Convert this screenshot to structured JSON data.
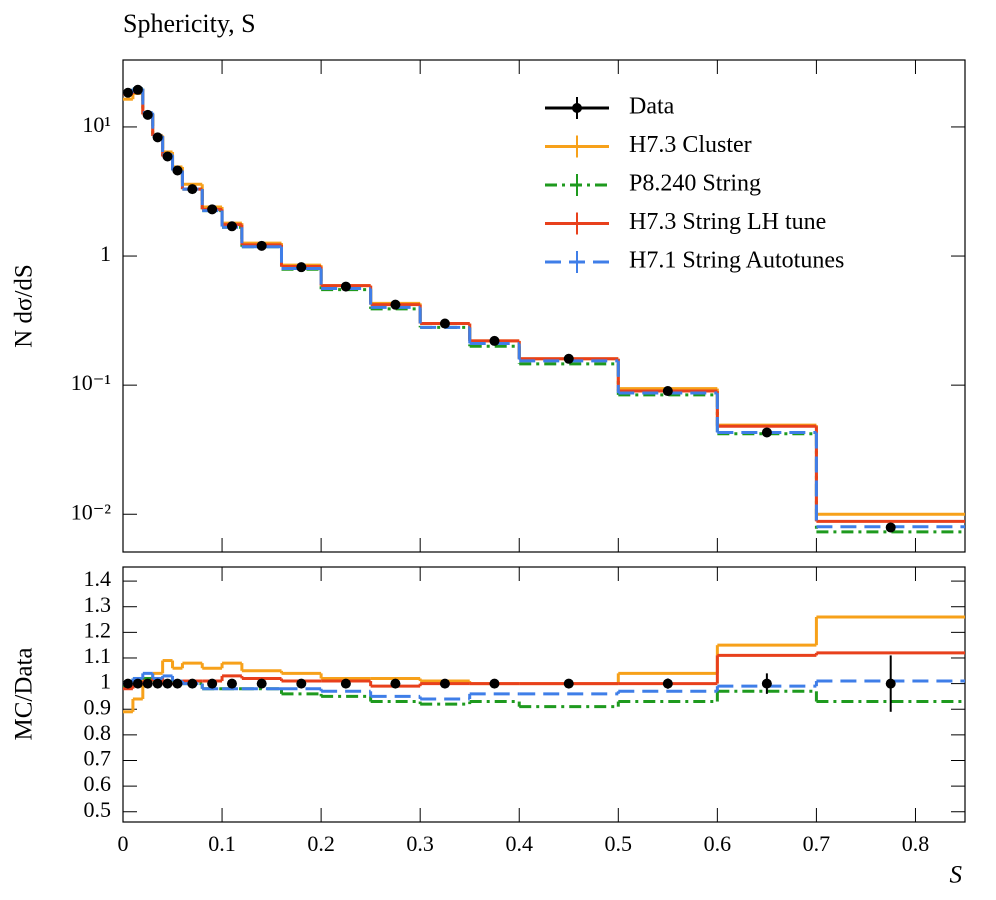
{
  "chart_data": [
    {
      "type": "histogram",
      "title": "Sphericity, S",
      "ylabel": "N dσ/dS",
      "log_y": true,
      "legend": "upper right",
      "xlim": [
        0,
        0.85
      ],
      "ylim": [
        0.0051,
        33
      ],
      "yticks": [
        {
          "value": 10,
          "label": "10¹"
        },
        1,
        {
          "value": 0.1,
          "label": "10⁻¹"
        },
        {
          "value": 0.01,
          "label": "10⁻²"
        }
      ],
      "bins": [
        0,
        0.01,
        0.02,
        0.03,
        0.04,
        0.05,
        0.06,
        0.08,
        0.1,
        0.12,
        0.16,
        0.2,
        0.25,
        0.3,
        0.35,
        0.4,
        0.5,
        0.6,
        0.7,
        0.85
      ],
      "series": [
        {
          "name": "Data",
          "color": "#000000",
          "style": "points",
          "values": [
            18.4,
            19.4,
            12.4,
            8.3,
            5.9,
            4.6,
            3.3,
            2.3,
            1.7,
            1.2,
            0.82,
            0.58,
            0.42,
            0.3,
            0.22,
            0.16,
            0.09,
            0.043,
            0.0079
          ]
        },
        {
          "name": "H7.3 Cluster",
          "color": "#f7a11a",
          "style": "solid",
          "values": [
            16.4,
            18.2,
            12.6,
            8.6,
            6.4,
            4.9,
            3.6,
            2.4,
            1.8,
            1.26,
            0.85,
            0.59,
            0.43,
            0.3,
            0.22,
            0.16,
            0.094,
            0.049,
            0.01
          ]
        },
        {
          "name": "P8.240 String",
          "color": "#1e9a1e",
          "style": "dashdot",
          "values": [
            18.2,
            19.8,
            12.6,
            8.4,
            6.0,
            4.6,
            3.3,
            2.25,
            1.67,
            1.18,
            0.79,
            0.55,
            0.39,
            0.28,
            0.2,
            0.146,
            0.084,
            0.042,
            0.0073
          ]
        },
        {
          "name": "H7.3 String LH tune",
          "color": "#e8401c",
          "style": "solid",
          "values": [
            18.0,
            19.4,
            12.5,
            8.5,
            5.9,
            4.6,
            3.3,
            2.3,
            1.75,
            1.22,
            0.83,
            0.59,
            0.42,
            0.3,
            0.22,
            0.16,
            0.09,
            0.048,
            0.0088
          ]
        },
        {
          "name": "H7.1 String Autotunes",
          "color": "#3f7ee8",
          "style": "dashed",
          "values": [
            18.4,
            19.8,
            12.9,
            8.5,
            6.1,
            4.6,
            3.3,
            2.25,
            1.67,
            1.18,
            0.8,
            0.56,
            0.4,
            0.28,
            0.21,
            0.154,
            0.087,
            0.043,
            0.008
          ]
        }
      ]
    },
    {
      "type": "histogram",
      "ylabel": "MC/Data",
      "xlabel": "S",
      "xlim": [
        0,
        0.85
      ],
      "xticks": [
        0,
        0.1,
        0.2,
        0.3,
        0.4,
        0.5,
        0.6,
        0.7,
        0.8
      ],
      "ylim": [
        0.46,
        1.455
      ],
      "yticks": [
        0.5,
        0.6,
        0.7,
        0.8,
        0.9,
        1,
        1.1,
        1.2,
        1.3,
        1.4
      ],
      "bins": [
        0,
        0.01,
        0.02,
        0.03,
        0.04,
        0.05,
        0.06,
        0.08,
        0.1,
        0.12,
        0.16,
        0.2,
        0.25,
        0.3,
        0.35,
        0.4,
        0.5,
        0.6,
        0.7,
        0.85
      ],
      "series": [
        {
          "name": "Data",
          "color": "#000000",
          "style": "points",
          "values": [
            1,
            1,
            1,
            1,
            1,
            1,
            1,
            1,
            1,
            1,
            1,
            1,
            1,
            1,
            1,
            1,
            1,
            1,
            1
          ],
          "errors": [
            0,
            0,
            0,
            0,
            0,
            0,
            0,
            0,
            0,
            0,
            0,
            0,
            0,
            0,
            0,
            0,
            0.02,
            0.04,
            0.11
          ]
        },
        {
          "name": "H7.3 Cluster",
          "color": "#f7a11a",
          "style": "solid",
          "values": [
            0.89,
            0.94,
            1.02,
            1.04,
            1.09,
            1.06,
            1.08,
            1.06,
            1.08,
            1.05,
            1.04,
            1.02,
            1.02,
            1.01,
            1.0,
            1.0,
            1.04,
            1.15,
            1.26
          ]
        },
        {
          "name": "P8.240 String",
          "color": "#1e9a1e",
          "style": "dashdot",
          "values": [
            0.99,
            1.02,
            1.02,
            1.01,
            1.01,
            1.0,
            1.0,
            0.98,
            0.98,
            0.98,
            0.96,
            0.95,
            0.93,
            0.92,
            0.93,
            0.91,
            0.93,
            0.97,
            0.93
          ]
        },
        {
          "name": "H7.3 String LH tune",
          "color": "#e8401c",
          "style": "solid",
          "values": [
            0.98,
            1.0,
            1.01,
            1.02,
            1.0,
            1.0,
            1.01,
            1.01,
            1.03,
            1.02,
            1.01,
            1.01,
            0.99,
            1.0,
            1.0,
            1.0,
            1.0,
            1.11,
            1.12
          ]
        },
        {
          "name": "H7.1 String Autotunes",
          "color": "#3f7ee8",
          "style": "dashed",
          "values": [
            1.0,
            1.02,
            1.04,
            1.02,
            1.03,
            1.01,
            1.0,
            0.98,
            0.98,
            0.98,
            0.98,
            0.97,
            0.95,
            0.94,
            0.96,
            0.96,
            0.97,
            0.99,
            1.01
          ]
        }
      ]
    }
  ]
}
